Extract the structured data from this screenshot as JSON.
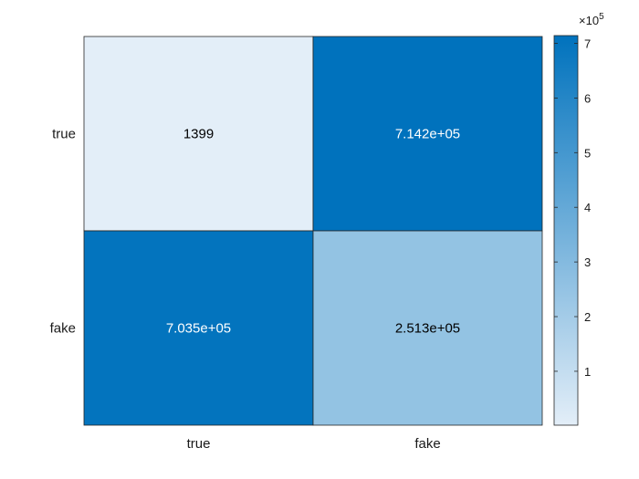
{
  "chart_data": {
    "type": "heatmap",
    "title": "",
    "xlabel": "",
    "ylabel": "",
    "x_categories": [
      "true",
      "fake"
    ],
    "y_categories": [
      "true",
      "fake"
    ],
    "values": [
      [
        1399,
        714200
      ],
      [
        703500,
        251300
      ]
    ],
    "cell_labels": [
      [
        "1399",
        "7.142e+05"
      ],
      [
        "7.035e+05",
        "2.513e+05"
      ]
    ],
    "colormap": {
      "low": "#e3eef8",
      "high": "#0072bd"
    },
    "colorbar": {
      "range": [
        1399,
        714200
      ],
      "ticks": [
        1,
        2,
        3,
        4,
        5,
        6,
        7
      ],
      "tick_labels": [
        "1",
        "2",
        "3",
        "4",
        "5",
        "6",
        "7"
      ],
      "scale_factor": 100000,
      "multiplier_label": "×10",
      "exponent_label": "5"
    }
  }
}
